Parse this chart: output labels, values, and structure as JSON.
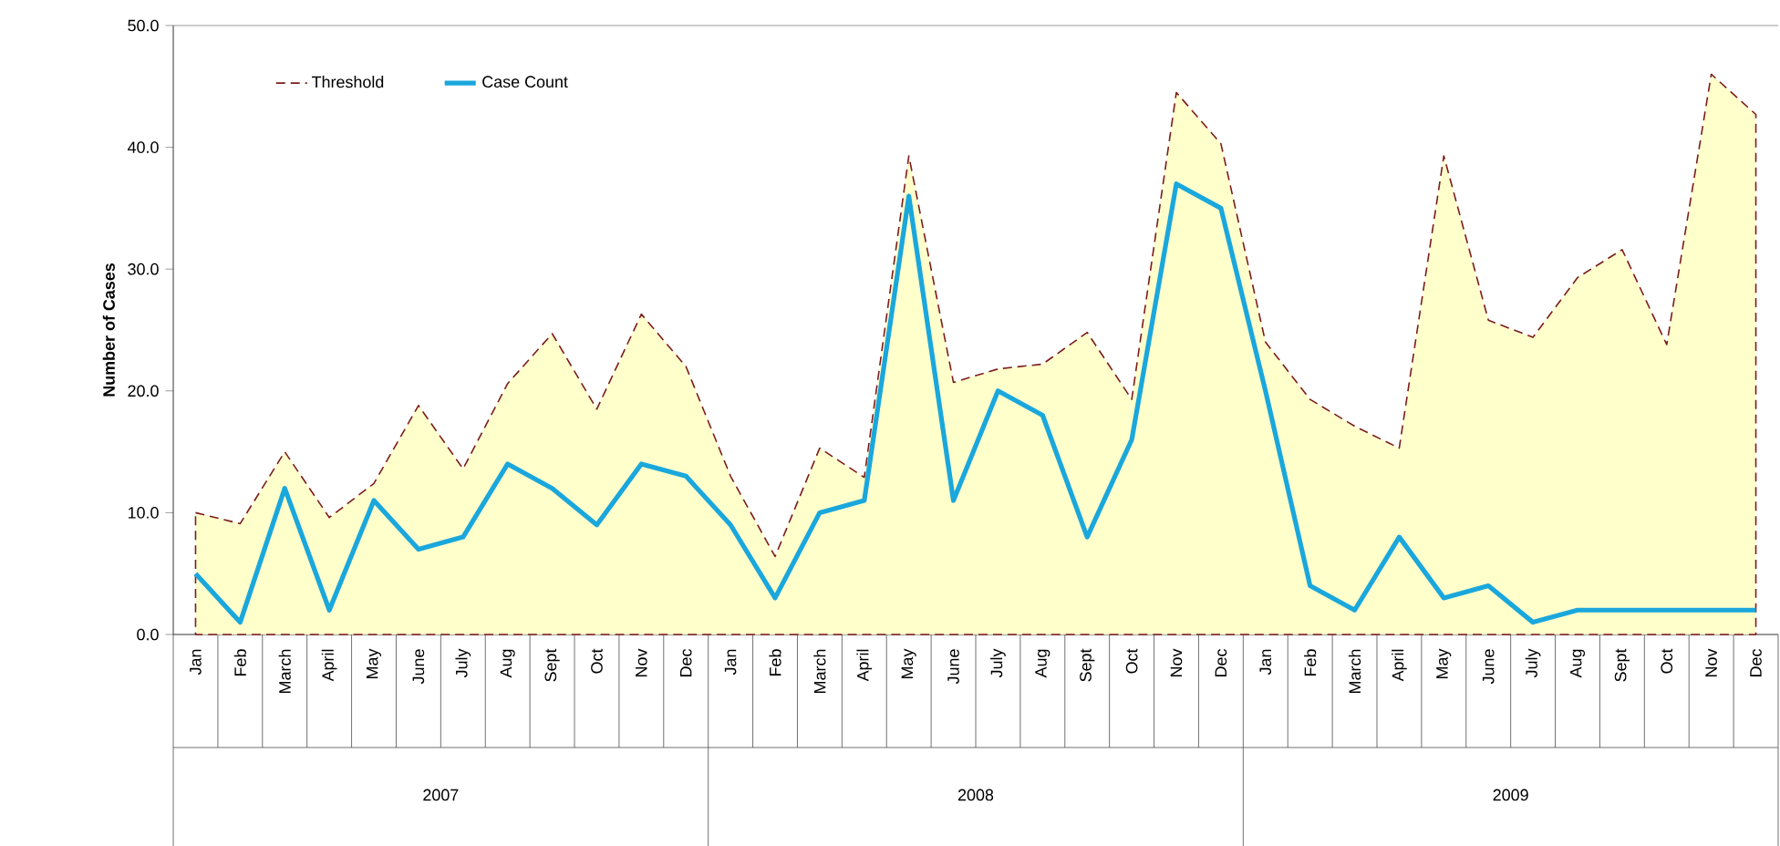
{
  "chart_data": {
    "type": "line",
    "ylabel": "Number of Cases",
    "categories": [
      "Jan",
      "Feb",
      "March",
      "April",
      "May",
      "June",
      "July",
      "Aug",
      "Sept",
      "Oct",
      "Nov",
      "Dec",
      "Jan",
      "Feb",
      "March",
      "April",
      "May",
      "June",
      "July",
      "Aug",
      "Sept",
      "Oct",
      "Nov",
      "Dec",
      "Jan",
      "Feb",
      "March",
      "April",
      "May",
      "June",
      "July",
      "Aug",
      "Sept",
      "Oct",
      "Nov",
      "Dec"
    ],
    "series": [
      {
        "name": "Threshold",
        "type": "area",
        "color": "#7b1c1c",
        "line_style": "dashed",
        "values": [
          10,
          9.1,
          15,
          9.6,
          12.4,
          18.8,
          13.6,
          20.6,
          24.7,
          18.5,
          26.3,
          22,
          13,
          6.4,
          15.3,
          12.9,
          39.3,
          20.7,
          21.8,
          22.2,
          24.8,
          19.3,
          44.5,
          40.3,
          24,
          19.3,
          17.1,
          15.3,
          39.3,
          25.8,
          24.4,
          29.3,
          31.6,
          23.8,
          46,
          42.7
        ]
      },
      {
        "name": "Case Count",
        "color": "#1aa7dc",
        "line_style": "solid",
        "values": [
          5,
          1,
          12,
          2,
          11,
          7,
          8,
          14,
          12,
          9,
          14,
          13,
          9,
          3,
          10,
          11,
          36,
          11,
          20,
          18,
          8,
          16,
          37,
          35,
          20,
          4,
          2,
          8,
          3,
          4,
          1,
          2,
          2,
          2,
          2,
          2
        ]
      }
    ],
    "ylim": [
      0,
      50
    ],
    "yticks": [
      {
        "value": 0,
        "label": "0.0"
      },
      {
        "value": 10,
        "label": "10.0"
      },
      {
        "value": 20,
        "label": "20.0"
      },
      {
        "value": 30,
        "label": "30.0"
      },
      {
        "value": 40,
        "label": "40.0"
      },
      {
        "value": 50,
        "label": "50.0"
      }
    ],
    "legend": "top left",
    "annotations": [
      "2007",
      "2008",
      "2009"
    ]
  }
}
